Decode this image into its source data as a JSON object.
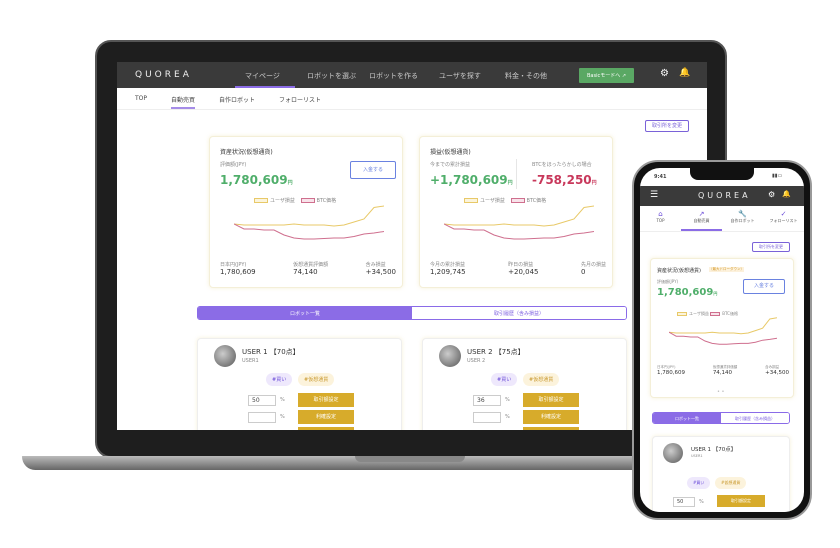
{
  "app": {
    "logo": "QUOREA"
  },
  "topnav": {
    "items": [
      "マイページ",
      "ロボットを選ぶ",
      "ロボットを作る",
      "ユーザを探す",
      "料金・その他"
    ],
    "mode_button": "Basicモードへ",
    "accent": "#8b6ce6"
  },
  "subnav": {
    "items": [
      "TOP",
      "自動売買",
      "自作ロボット",
      "フォローリスト"
    ],
    "active": 1
  },
  "exchange_button": "取引所を変更",
  "assets": {
    "title": "資産状況(仮想通貨)",
    "value_label": "評価額(JPY)",
    "value": "1,780,609",
    "unit": "円",
    "deposit_button": "入金する",
    "legend": [
      "ユーザ損益",
      "BTC価格"
    ],
    "stats": [
      {
        "label": "日本円(JPY)",
        "value": "1,780,609"
      },
      {
        "label": "仮想通貨評価額",
        "value": "74,140"
      },
      {
        "label": "含み損益",
        "value": "+34,500"
      }
    ]
  },
  "profit": {
    "title": "損益(仮想通貨)",
    "total_label": "今までの累計損益",
    "total": "+1,780,609",
    "btc_label": "BTCをほったらかしの場合",
    "btc": "-758,250",
    "unit": "円",
    "legend": [
      "ユーザ損益",
      "BTC価格"
    ],
    "stats": [
      {
        "label": "今月の累計損益",
        "value": "1,209,745"
      },
      {
        "label": "昨日の損益",
        "value": "+20,045"
      },
      {
        "label": "先月の損益",
        "value": "0"
      }
    ]
  },
  "chart_series": {
    "user": [
      0.62,
      0.6,
      0.6,
      0.6,
      0.6,
      0.6,
      0.62,
      0.6,
      0.6,
      0.6,
      0.58,
      0.6,
      0.66,
      0.72,
      0.95,
      0.98
    ],
    "btc": [
      0.62,
      0.52,
      0.52,
      0.5,
      0.5,
      0.4,
      0.34,
      0.32,
      0.32,
      0.33,
      0.34,
      0.34,
      0.37,
      0.42,
      0.44,
      0.47
    ],
    "user_color": "#e8c968",
    "btc_color": "#cf6f8e"
  },
  "tabs": [
    "ロボット一覧",
    "取引履歴（含み損益）"
  ],
  "robots": [
    {
      "name": "USER 1 【70点】",
      "sub": "USER1",
      "tags": [
        "#買い",
        "#仮想通貨"
      ],
      "amount": "50",
      "pct": "%",
      "buttons": [
        "取引額設定",
        "利確設定"
      ]
    },
    {
      "name": "USER 2 【75点】",
      "sub": "USER 2",
      "tags": [
        "#買い",
        "#仮想通貨"
      ],
      "amount": "36",
      "pct": "%",
      "buttons": [
        "取引額設定",
        "利確設定"
      ]
    }
  ],
  "phone": {
    "time": "9:41",
    "tabs": [
      "TOP",
      "自動売買",
      "自作ロボット",
      "フォローリスト"
    ],
    "badge": "（最大ドローダウン）"
  }
}
